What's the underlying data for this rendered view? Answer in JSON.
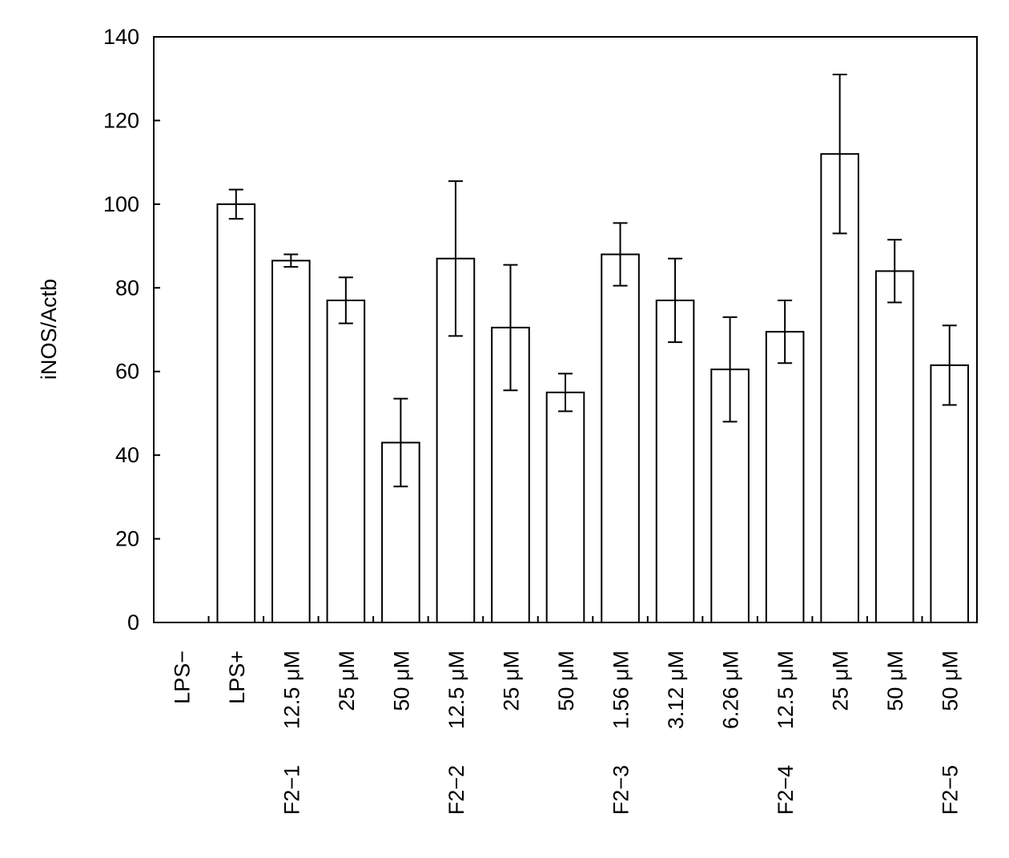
{
  "chart_data": {
    "type": "bar",
    "ylabel": "iNOS/Actb",
    "xlabel": "",
    "ylim": [
      0,
      140
    ],
    "yticks": [
      "0",
      "20",
      "40",
      "60",
      "80",
      "100",
      "120",
      "140"
    ],
    "grid": false,
    "categories": [
      "LPS−",
      "LPS+",
      "12.5 μM",
      "25 μM",
      "50 μM",
      "12.5 μM",
      "25 μM",
      "50 μM",
      "1.56 μM",
      "3.12 μM",
      "6.26 μM",
      "12.5 μM",
      "25 μM",
      "50 μM",
      "50 μM"
    ],
    "groups": [
      {
        "label": "F2−1",
        "index": 2
      },
      {
        "label": "F2−2",
        "index": 5
      },
      {
        "label": "F2−3",
        "index": 8
      },
      {
        "label": "F2−4",
        "index": 11
      },
      {
        "label": "F2−5",
        "index": 14
      }
    ],
    "series": [
      {
        "values": [
          0,
          100,
          86.5,
          77,
          43,
          87,
          70.5,
          55,
          88,
          77,
          60.5,
          69.5,
          112,
          84,
          61.5
        ],
        "error": [
          0,
          3.5,
          1.5,
          5.5,
          10.5,
          18.5,
          15,
          4.5,
          7.5,
          10,
          12.5,
          7.5,
          19,
          7.5,
          9.5
        ]
      }
    ]
  }
}
